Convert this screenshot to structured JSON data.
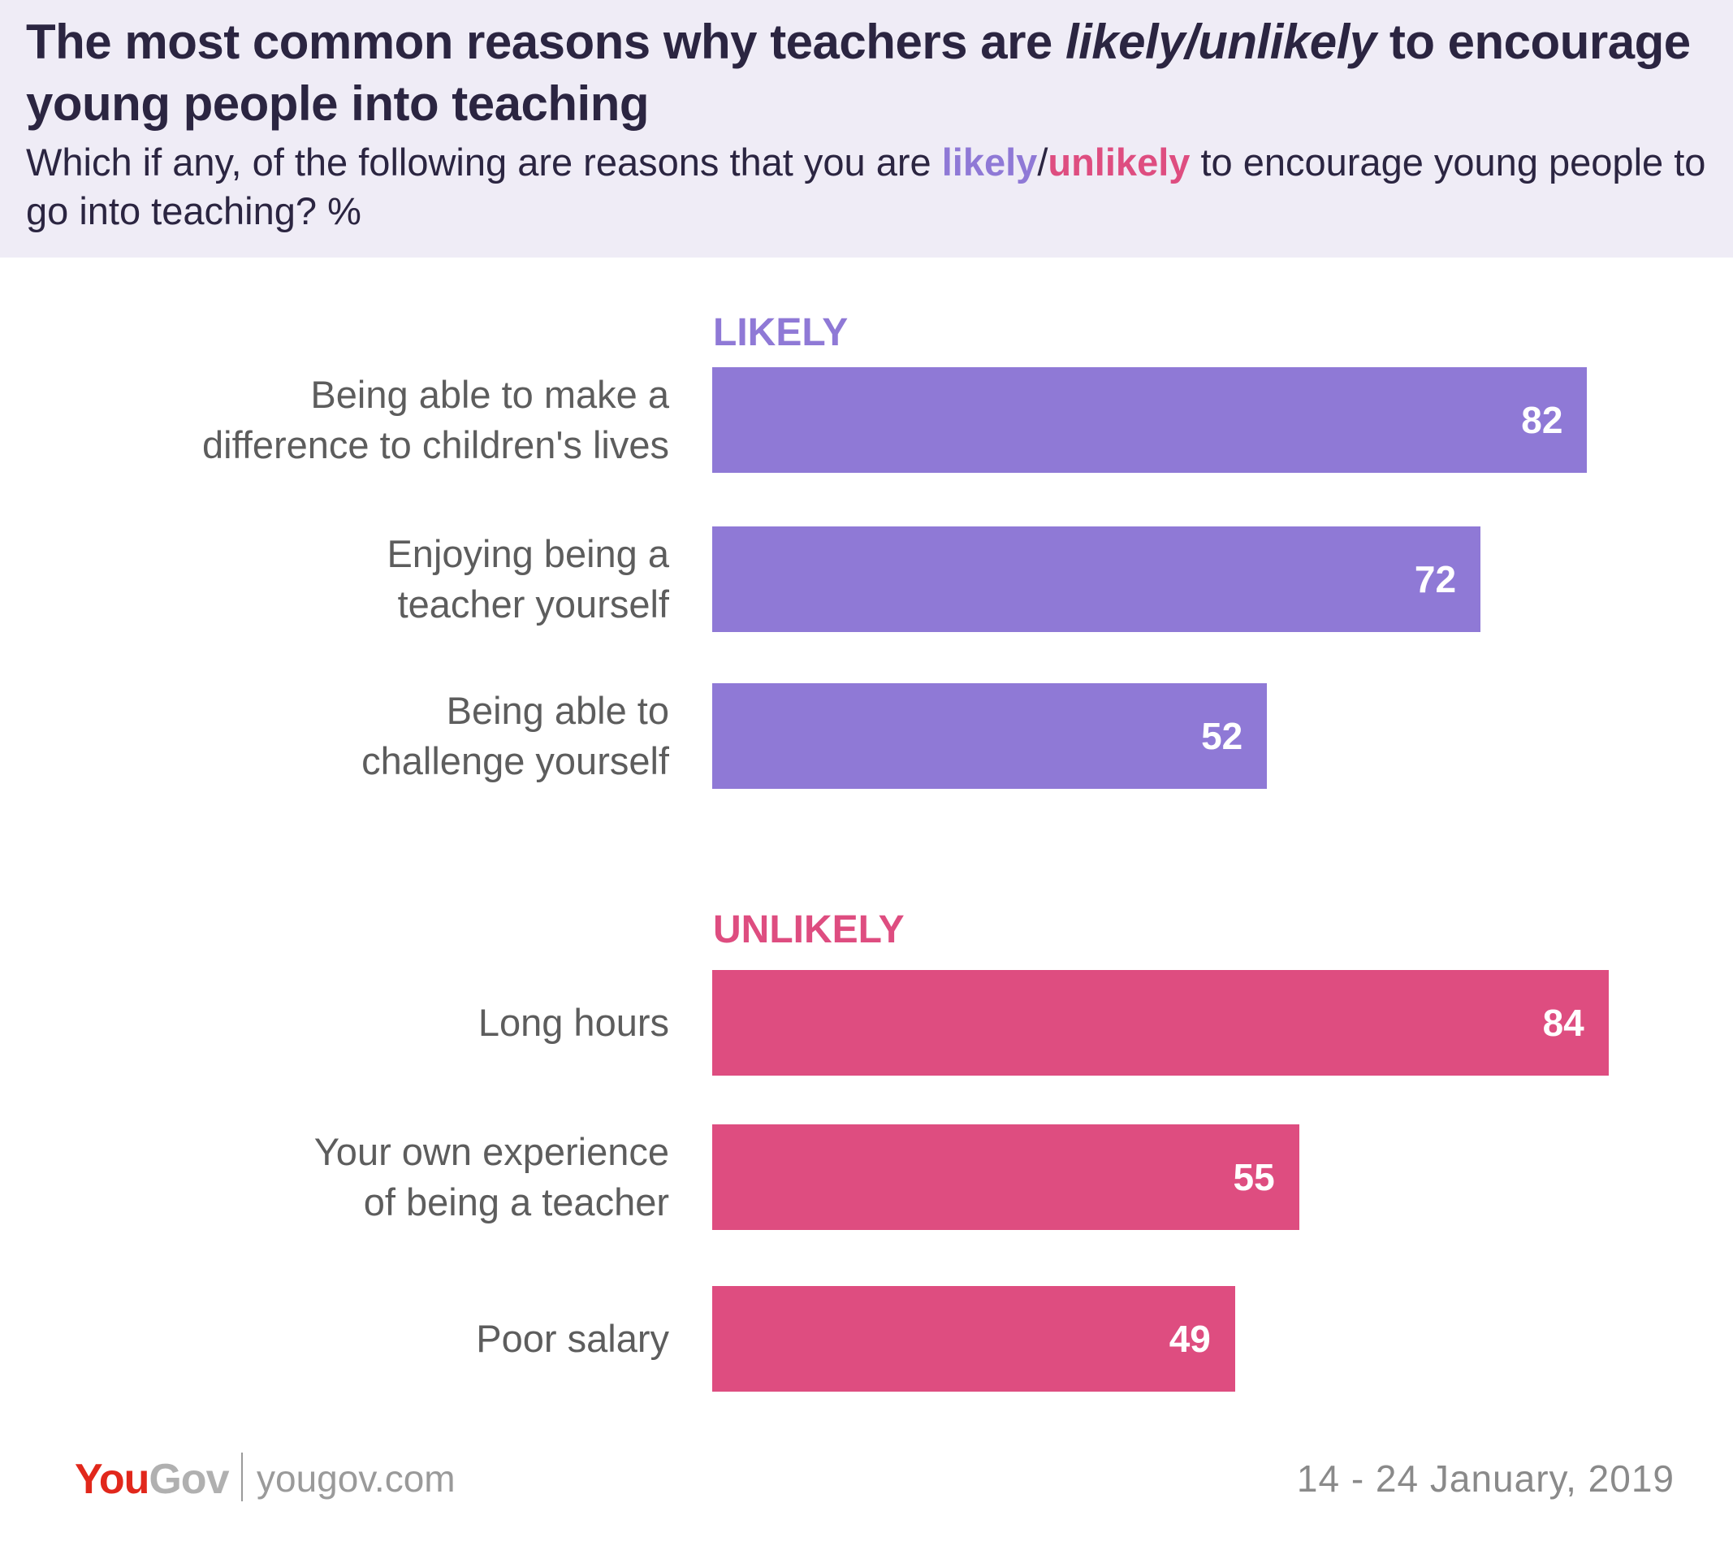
{
  "header": {
    "title_part1": "The most common reasons why teachers are ",
    "title_emph": "likely/unlikely",
    "title_part2": " to encourage young people into teaching",
    "subtitle_part1": "Which if any, of the following are reasons that you are ",
    "subtitle_likely": "likely",
    "subtitle_slash": "/",
    "subtitle_unlikely": "unlikely",
    "subtitle_part2": " to encourage young people to go into teaching? %"
  },
  "colors": {
    "likely": "#8f79d6",
    "unlikely": "#de4d80",
    "header_bg": "#efecf6"
  },
  "chart_data": {
    "type": "bar",
    "orientation": "horizontal",
    "xlim": [
      0,
      100
    ],
    "groups": [
      {
        "name": "LIKELY",
        "color": "#8f79d6",
        "categories": [
          "Being able to make a \ndifference to children's lives",
          "Enjoying being a\nteacher yourself",
          "Being able to \nchallenge yourself"
        ],
        "values": [
          82,
          72,
          52
        ]
      },
      {
        "name": "UNLIKELY",
        "color": "#de4d80",
        "categories": [
          "Long hours",
          "Your own experience \nof being a teacher",
          "Poor salary"
        ],
        "values": [
          84,
          55,
          49
        ]
      }
    ]
  },
  "footer": {
    "logo_you": "You",
    "logo_gov": "Gov",
    "url": "yougov.com",
    "date": "14 - 24 January, 2019"
  }
}
